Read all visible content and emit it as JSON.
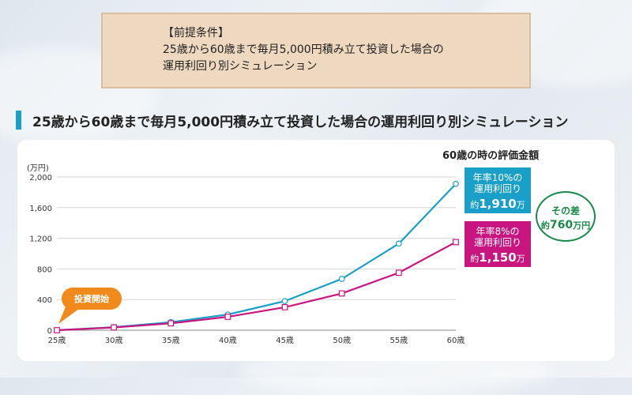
{
  "conditions": {
    "label": "【前提条件】",
    "line1": "25歳から60歳まで毎月5,000円積み立て投資した場合の",
    "line2": "運用利回り別シミュレーション"
  },
  "section_title": "25歳から60歳まで毎月5,000円積み立て投資した場合の運用利回り別シミュレーション",
  "evaluation_title": "60歳の時の評価金額",
  "callout_10": {
    "line1": "年率10%の",
    "line2": "運用利回り",
    "prefix": "約",
    "amount": "1,910",
    "unit": "万円"
  },
  "callout_8": {
    "line1": "年率8%の",
    "line2": "運用利回り",
    "prefix": "約",
    "amount": "1,150",
    "unit": "万円"
  },
  "difference": {
    "line1": "その差",
    "prefix": "約",
    "amount": "760",
    "unit": "万円"
  },
  "start_badge": "投資開始",
  "colors": {
    "rate_10": "#1a9fc9",
    "rate_8": "#c8157f",
    "badge": "#f08a1c",
    "difference": "#1a8a4a"
  },
  "chart_data": {
    "type": "line",
    "ylabel": "(万円)",
    "ylim": [
      0,
      2000
    ],
    "yticks": [
      0,
      400,
      800,
      1200,
      1600,
      2000
    ],
    "ytick_labels": [
      "0",
      "400",
      "800",
      "1,200",
      "1,600",
      "2,000"
    ],
    "x": [
      25,
      30,
      35,
      40,
      45,
      50,
      55,
      60
    ],
    "xtick_labels": [
      "25歳",
      "30歳",
      "35歳",
      "40歳",
      "45歳",
      "50歳",
      "55歳",
      "60歳"
    ],
    "grid": true,
    "series": [
      {
        "key": "rate_10",
        "marker": "circle",
        "values": [
          0,
          40,
          105,
          205,
          380,
          670,
          1130,
          1910
        ]
      },
      {
        "key": "rate_8",
        "marker": "square",
        "values": [
          0,
          36,
          90,
          175,
          300,
          480,
          750,
          1150
        ]
      }
    ]
  }
}
